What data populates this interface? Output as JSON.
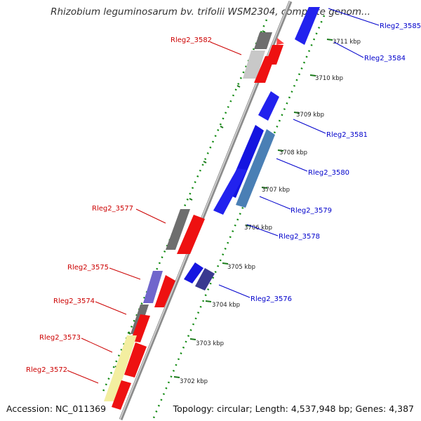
{
  "title": "Rhizobium leguminosarum bv. trifolii WSM2304, complete genom...",
  "footer": {
    "accession": "Accession: NC_011369",
    "summary": "Topology: circular; Length: 4,537,948 bp; Genes: 4,387"
  },
  "ticks": [
    "3711 kbp",
    "3710 kbp",
    "3709 kbp",
    "3708 kbp",
    "3707 kbp",
    "3706 kbp",
    "3705 kbp",
    "3704 kbp",
    "3703 kbp",
    "3702 kbp"
  ],
  "genes": {
    "forward": [
      "Rleg2_3582",
      "Rleg2_3577",
      "Rleg2_3575",
      "Rleg2_3574",
      "Rleg2_3573",
      "Rleg2_3572"
    ],
    "reverse": [
      "Rleg2_3585",
      "Rleg2_3584",
      "Rleg2_3581",
      "Rleg2_3580",
      "Rleg2_3579",
      "Rleg2_3578",
      "Rleg2_3576"
    ]
  },
  "colors": {
    "forward_cds": "#ff0000",
    "reverse_cds": "#0000ff",
    "backbone": "#8c8c8c",
    "tick_dots": "#008000",
    "label_forward": "#cc0000",
    "label_reverse": "#0000cc"
  }
}
